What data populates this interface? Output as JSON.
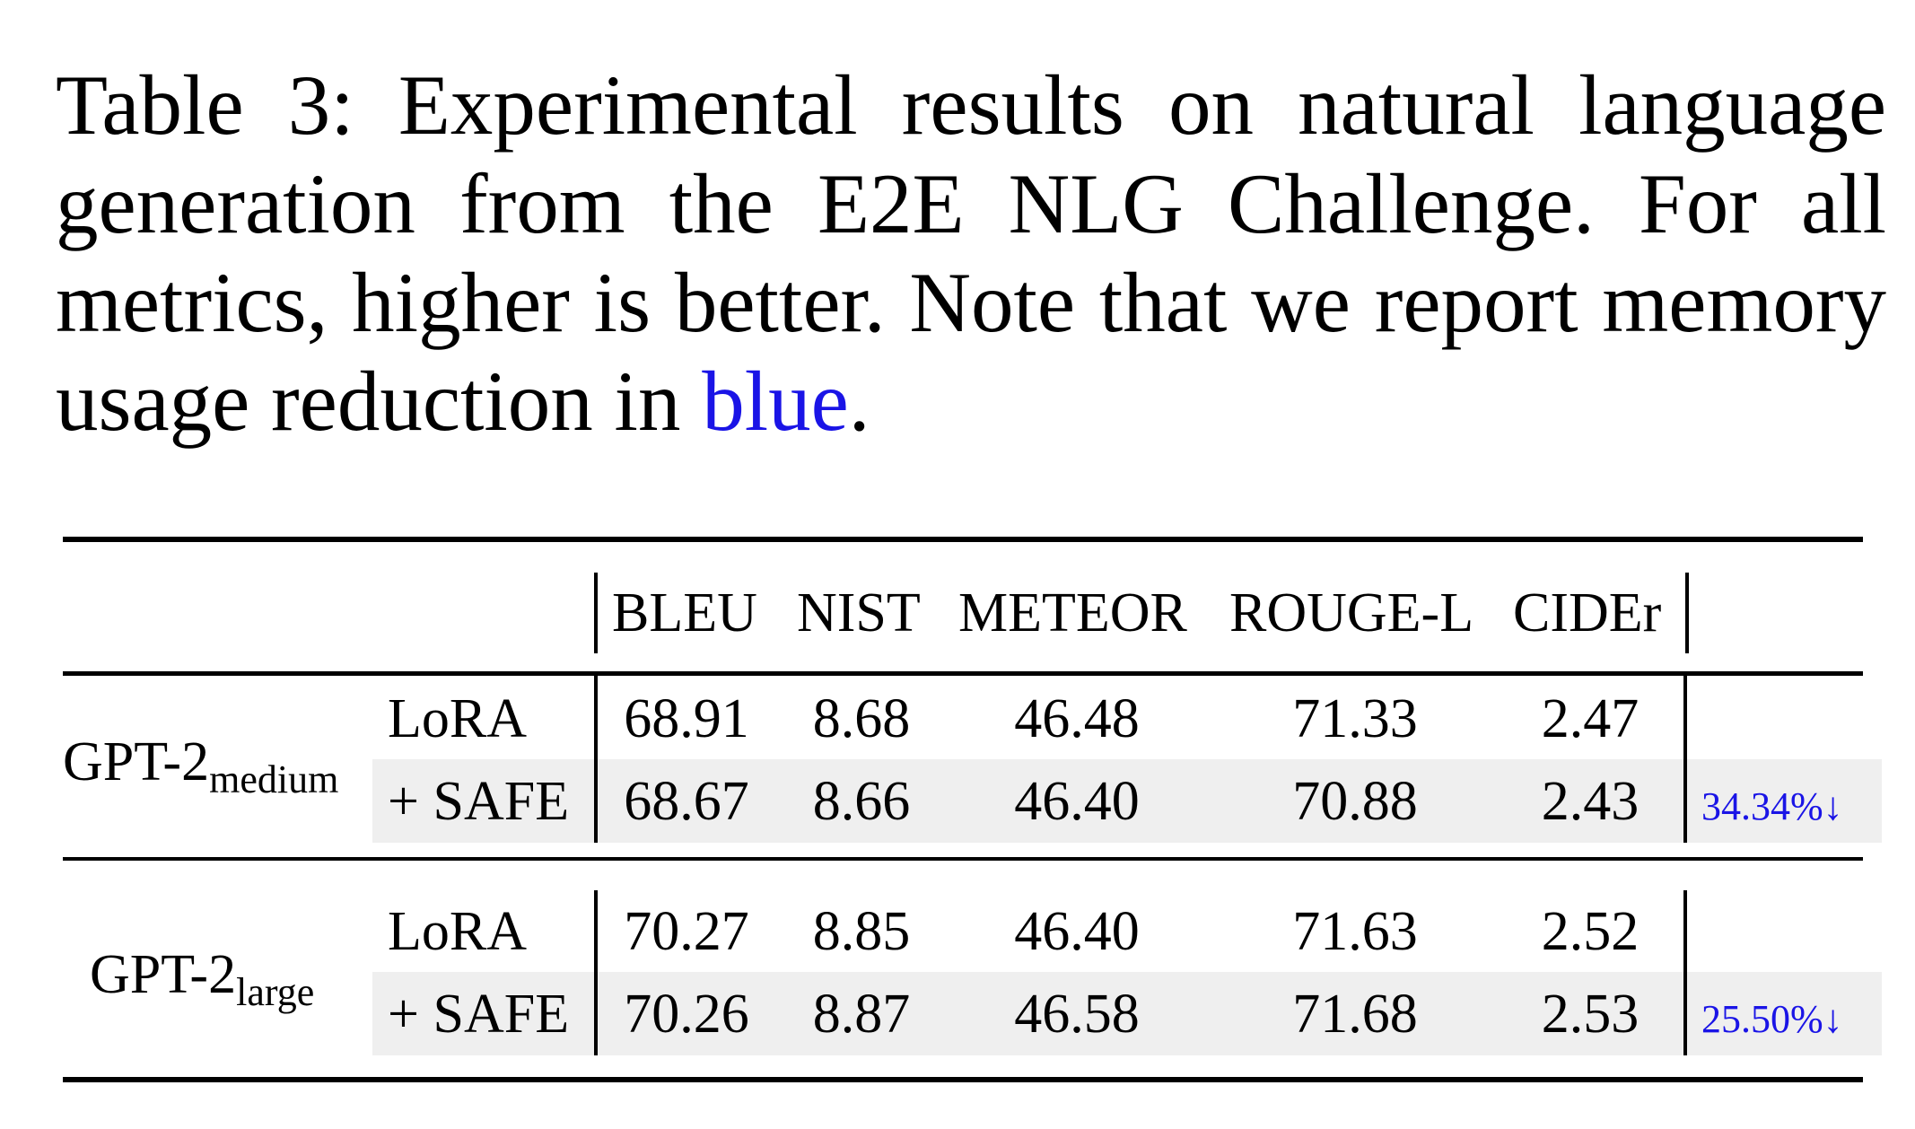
{
  "caption": {
    "main": "Table 3: Experimental results on natural language generation from the E2E NLG Challenge. For all metrics, higher is better. Note that we report memory usage reduction in ",
    "highlight": "blue",
    "end": ".",
    "highlight_color": "#1a14e6"
  },
  "table": {
    "columns": [
      "BLEU",
      "NIST",
      "METEOR",
      "ROUGE-L",
      "CIDEr"
    ],
    "groups": [
      {
        "model_base": "GPT-2",
        "model_sub": "medium",
        "rows": [
          {
            "method": "LoRA",
            "values": [
              "68.91",
              "8.68",
              "46.48",
              "71.33",
              "2.47"
            ],
            "reduction": ""
          },
          {
            "method": "+ SAFE",
            "values": [
              "68.67",
              "8.66",
              "46.40",
              "70.88",
              "2.43"
            ],
            "reduction": "34.34%↓"
          }
        ]
      },
      {
        "model_base": "GPT-2",
        "model_sub": "large",
        "rows": [
          {
            "method": "LoRA",
            "values": [
              "70.27",
              "8.85",
              "46.40",
              "71.63",
              "2.52"
            ],
            "reduction": ""
          },
          {
            "method": "+ SAFE",
            "values": [
              "70.26",
              "8.87",
              "46.58",
              "71.68",
              "2.53"
            ],
            "reduction": "25.50%↓"
          }
        ]
      }
    ]
  }
}
